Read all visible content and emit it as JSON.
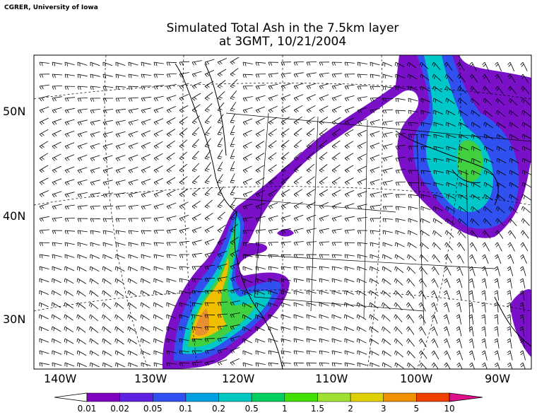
{
  "header": {
    "credit": "CGRER, University of Iowa",
    "title_line1": "Simulated Total Ash in the 7.5km layer",
    "title_line2": "at 3GMT, 10/21/2004"
  },
  "map": {
    "lat_labels": [
      "50N",
      "40N",
      "30N"
    ],
    "lon_labels": [
      "140W",
      "130W",
      "120W",
      "110W",
      "100W",
      "90W"
    ],
    "lon_range": [
      -143.5,
      -86.5
    ],
    "lat_range": [
      25.3,
      54.5
    ]
  },
  "colorbar": {
    "levels": [
      "0.01",
      "0.02",
      "0.05",
      "0.1",
      "0.2",
      "0.5",
      "1",
      "1.5",
      "2",
      "3",
      "5",
      "10"
    ],
    "colors": [
      "#8000c0",
      "#6020e0",
      "#3050f0",
      "#00a0e0",
      "#00c8c0",
      "#00d060",
      "#40e000",
      "#a0e030",
      "#e0d000",
      "#f09000",
      "#f04000",
      "#ff0000",
      "#e0108a"
    ]
  },
  "colors": {
    "frame": "#000000",
    "ash_low": "#7a10c8",
    "ash_mid": "#00c8c8",
    "ash_high": "#f0c000",
    "ash_peak": "#f08020"
  }
}
